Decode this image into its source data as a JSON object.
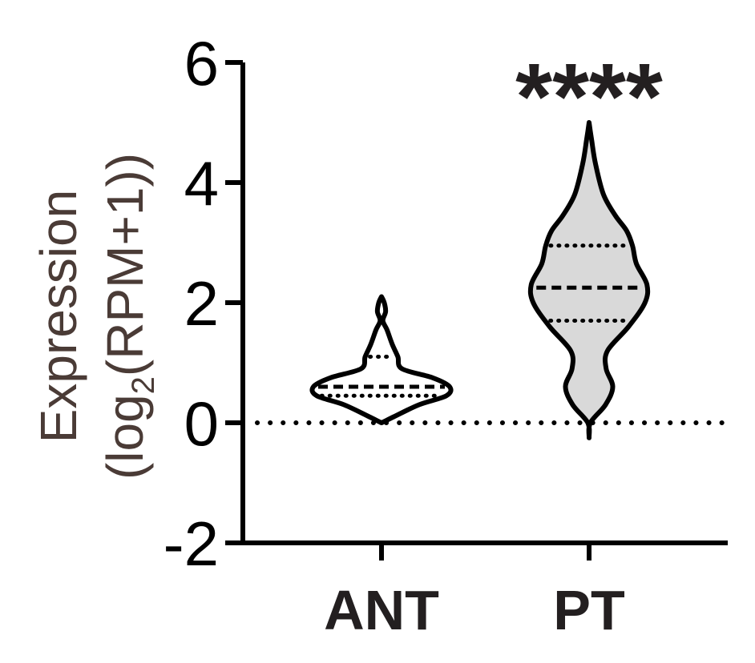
{
  "chart_data": {
    "type": "violin",
    "ylabel": {
      "line1": "Expression",
      "line2_prefix": "(log",
      "line2_subscript": "2",
      "line2_suffix": "(RPM+1))"
    },
    "ylim": [
      -2,
      6
    ],
    "yticks": [
      -2,
      0,
      2,
      4,
      6
    ],
    "ytick_labels": [
      "-2",
      "0",
      "2",
      "4",
      "6"
    ],
    "reference_line": {
      "y": 0,
      "style": "dotted"
    },
    "categories": [
      "ANT",
      "PT"
    ],
    "groups": [
      {
        "name": "ANT",
        "fill": "#ffffff",
        "min": 0.0,
        "max": 2.1,
        "median": 0.6,
        "q1": 0.45,
        "q3": 1.1,
        "density": [
          [
            0.0,
            0.0
          ],
          [
            0.1,
            0.18
          ],
          [
            0.3,
            0.55
          ],
          [
            0.45,
            0.95
          ],
          [
            0.6,
            1.0
          ],
          [
            0.75,
            0.75
          ],
          [
            0.9,
            0.3
          ],
          [
            1.1,
            0.24
          ],
          [
            1.3,
            0.16
          ],
          [
            1.55,
            0.08
          ],
          [
            1.7,
            0.02
          ],
          [
            1.85,
            0.06
          ],
          [
            2.0,
            0.04
          ],
          [
            2.1,
            0.0
          ]
        ]
      },
      {
        "name": "PT",
        "fill": "#d9d9d9",
        "min": -0.25,
        "max": 5.0,
        "median": 2.25,
        "q1": 1.7,
        "q3": 2.95,
        "significance": "****",
        "density": [
          [
            -0.25,
            0.0
          ],
          [
            0.0,
            0.02
          ],
          [
            0.3,
            0.25
          ],
          [
            0.6,
            0.36
          ],
          [
            0.9,
            0.26
          ],
          [
            1.2,
            0.28
          ],
          [
            1.6,
            0.6
          ],
          [
            2.0,
            0.85
          ],
          [
            2.3,
            0.88
          ],
          [
            2.65,
            0.72
          ],
          [
            2.95,
            0.66
          ],
          [
            3.2,
            0.57
          ],
          [
            3.45,
            0.4
          ],
          [
            3.8,
            0.22
          ],
          [
            4.3,
            0.1
          ],
          [
            4.7,
            0.04
          ],
          [
            5.0,
            0.0
          ]
        ]
      }
    ]
  }
}
